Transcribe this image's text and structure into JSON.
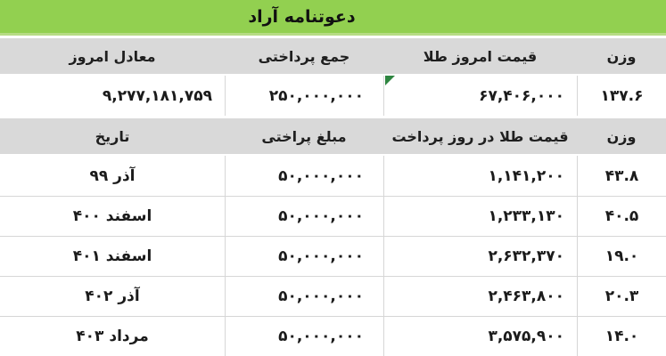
{
  "title": "دعوتنامه آراد",
  "colors": {
    "title_bg": "#92D050",
    "title_accent": "#B7DC85",
    "header_bg": "#D9D9D9",
    "grid_border": "#D6D6D6",
    "text": "#1B1B1B",
    "error_indicator": "#2E8540"
  },
  "summary": {
    "headers": [
      "وزن",
      "قیمت امروز طلا",
      "جمع پرداختی",
      "معادل امروز"
    ],
    "row": {
      "weight": "۱۳۷.۶",
      "gold_price_today": "۶۷,۴۰۶,۰۰۰",
      "total_paid": "۲۵۰,۰۰۰,۰۰۰",
      "equivalent_today": "۹,۲۷۷,۱۸۱,۷۵۹"
    }
  },
  "payments": {
    "headers": [
      "وزن",
      "قیمت طلا در روز پرداخت",
      "مبلغ پراختی",
      "تاریخ"
    ],
    "rows": [
      {
        "weight": "۴۳.۸",
        "gold_price": "۱,۱۴۱,۲۰۰",
        "amount": "۵۰,۰۰۰,۰۰۰",
        "date": "آذر ۹۹"
      },
      {
        "weight": "۴۰.۵",
        "gold_price": "۱,۲۳۳,۱۳۰",
        "amount": "۵۰,۰۰۰,۰۰۰",
        "date": "اسفند ۴۰۰"
      },
      {
        "weight": "۱۹.۰",
        "gold_price": "۲,۶۳۲,۳۷۰",
        "amount": "۵۰,۰۰۰,۰۰۰",
        "date": "اسفند ۴۰۱"
      },
      {
        "weight": "۲۰.۳",
        "gold_price": "۲,۴۶۳,۸۰۰",
        "amount": "۵۰,۰۰۰,۰۰۰",
        "date": "آذر ۴۰۲"
      },
      {
        "weight": "۱۴.۰",
        "gold_price": "۳,۵۷۵,۹۰۰",
        "amount": "۵۰,۰۰۰,۰۰۰",
        "date": "مرداد ۴۰۳"
      }
    ]
  }
}
